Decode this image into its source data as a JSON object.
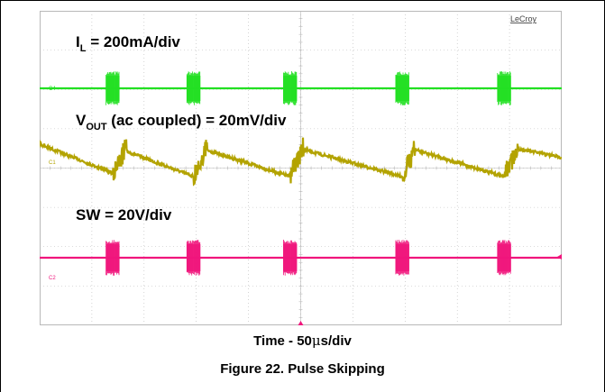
{
  "brand": "LeCroy",
  "labels": {
    "il_main": "I",
    "il_sub": "L",
    "il_rest": " = 200mA/div",
    "vout_main": "V",
    "vout_sub": "OUT",
    "vout_rest": " (ac coupled) = 20mV/div",
    "sw": "SW = 20V/div"
  },
  "channel_markers": {
    "c4": "C4",
    "c1": "C1",
    "c2": "C2"
  },
  "time_axis": {
    "prefix": "Time - 50",
    "mu": "μ",
    "suffix": "s/div"
  },
  "caption": "Figure 22. Pulse Skipping",
  "colors": {
    "il": "#22e022",
    "vout": "#b3a300",
    "sw": "#f0157c",
    "grid": "#b8b8b8",
    "marker": "#f0157c"
  },
  "chart_data": {
    "type": "line",
    "title": "",
    "xlabel": "Time - 50μs/div",
    "time_per_div_us": 50,
    "divisions": {
      "x": 10,
      "y": 8
    },
    "grid": true,
    "pulse_centers_div": [
      1.4,
      2.95,
      4.8,
      6.95,
      8.9
    ],
    "series": [
      {
        "name": "I_L",
        "scale": "200mA/div",
        "shape": "pulse bursts at each switching event"
      },
      {
        "name": "V_OUT",
        "scale": "20mV/div",
        "coupling": "ac",
        "shape": "sawtooth: rises at each burst, decays linearly between"
      },
      {
        "name": "SW",
        "scale": "20V/div",
        "shape": "switching bursts at each pulse"
      }
    ]
  }
}
